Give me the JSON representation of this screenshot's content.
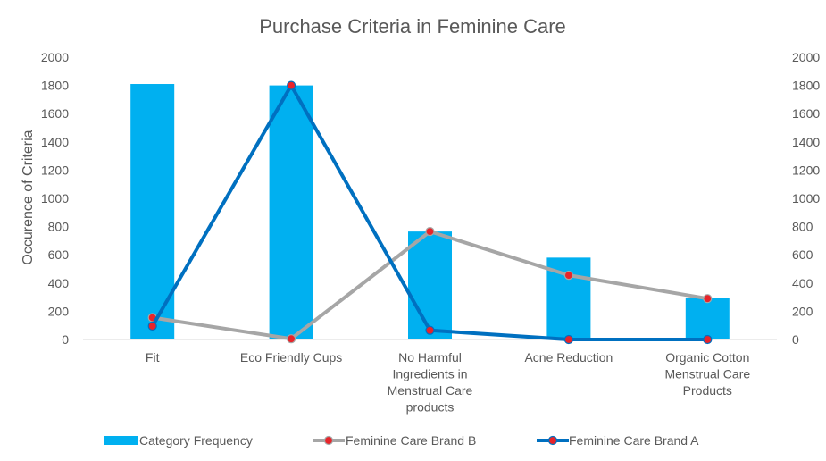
{
  "chart_data": {
    "type": "bar",
    "title": "Purchase Criteria in Feminine Care",
    "ylabel": "Occurence of Criteria",
    "ylim": [
      0,
      2000
    ],
    "y2lim": [
      0,
      2000
    ],
    "yticks": [
      "0",
      "200",
      "400",
      "600",
      "800",
      "1000",
      "1200",
      "1400",
      "1600",
      "1800",
      "2000"
    ],
    "y2ticks": [
      "0",
      "200",
      "400",
      "600",
      "800",
      "1000",
      "1200",
      "1400",
      "1600",
      "1800",
      "2000"
    ],
    "categories": [
      [
        "Fit"
      ],
      [
        "Eco Friendly Cups"
      ],
      [
        "No Harmful",
        "Ingredients in",
        "Menstrual Care",
        "products"
      ],
      [
        "Acne Reduction"
      ],
      [
        "Organic Cotton",
        "Menstrual Care",
        "Products"
      ]
    ],
    "series": [
      {
        "name": "Category Frequency",
        "type": "bar",
        "color": "#00B0F0",
        "values": [
          1810,
          1800,
          765,
          580,
          295
        ]
      },
      {
        "name": "Feminine Care Brand B",
        "type": "line",
        "color": "#A6A6A6",
        "marker_color": "#E8242A",
        "values": [
          155,
          5,
          765,
          455,
          290
        ]
      },
      {
        "name": "Feminine Care Brand A",
        "type": "line",
        "color": "#0070C0",
        "marker_color": "#E8242A",
        "values": [
          95,
          1800,
          65,
          0,
          0
        ]
      }
    ],
    "grid": false,
    "legend_position": "bottom"
  }
}
